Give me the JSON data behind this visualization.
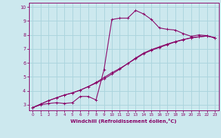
{
  "xlabel": "Windchill (Refroidissement éolien,°C)",
  "bg_color": "#cce8ee",
  "grid_color": "#aad4dd",
  "line_color": "#880066",
  "xlim": [
    -0.5,
    23.5
  ],
  "ylim": [
    2.6,
    10.3
  ],
  "xticks": [
    0,
    1,
    2,
    3,
    4,
    5,
    6,
    7,
    8,
    9,
    10,
    11,
    12,
    13,
    14,
    15,
    16,
    17,
    18,
    19,
    20,
    21,
    22,
    23
  ],
  "yticks": [
    3,
    4,
    5,
    6,
    7,
    8,
    9,
    10
  ],
  "line1_x": [
    0,
    1,
    2,
    3,
    4,
    5,
    6,
    7,
    8,
    9,
    10,
    11,
    12,
    13,
    14,
    15,
    16,
    17,
    18,
    19,
    20,
    21,
    22,
    23
  ],
  "line1_y": [
    2.8,
    3.0,
    3.1,
    3.15,
    3.1,
    3.15,
    3.6,
    3.6,
    3.35,
    5.5,
    9.1,
    9.2,
    9.2,
    9.75,
    9.5,
    9.1,
    8.5,
    8.4,
    8.35,
    8.1,
    7.9,
    8.0,
    7.95,
    7.8
  ],
  "line2_x": [
    0,
    1,
    2,
    3,
    4,
    5,
    6,
    7,
    8,
    9,
    10,
    11,
    12,
    13,
    14,
    15,
    16,
    17,
    18,
    19,
    20,
    21,
    22,
    23
  ],
  "line2_y": [
    2.8,
    3.05,
    3.3,
    3.5,
    3.7,
    3.85,
    4.05,
    4.3,
    4.6,
    4.95,
    5.3,
    5.6,
    5.95,
    6.3,
    6.65,
    6.9,
    7.1,
    7.3,
    7.5,
    7.65,
    7.8,
    7.87,
    7.92,
    7.8
  ],
  "line3_x": [
    0,
    1,
    2,
    3,
    4,
    5,
    6,
    7,
    8,
    9,
    10,
    11,
    12,
    13,
    14,
    15,
    16,
    17,
    18,
    19,
    20,
    21,
    22,
    23
  ],
  "line3_y": [
    2.8,
    3.05,
    3.3,
    3.5,
    3.7,
    3.85,
    4.05,
    4.3,
    4.55,
    4.85,
    5.2,
    5.55,
    5.95,
    6.35,
    6.7,
    6.95,
    7.15,
    7.35,
    7.52,
    7.67,
    7.78,
    7.86,
    7.92,
    7.8
  ]
}
